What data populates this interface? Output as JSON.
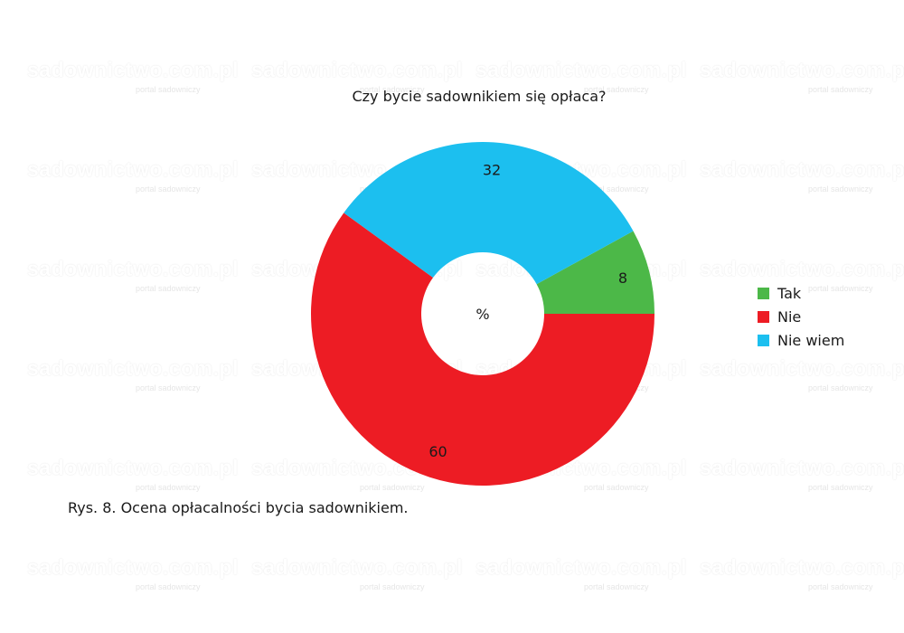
{
  "chart_data": {
    "type": "pie",
    "title": "Czy bycie sadownikiem się opłaca?",
    "center_label": "%",
    "categories": [
      "Tak",
      "Nie",
      "Nie wiem"
    ],
    "values": [
      8,
      60,
      32
    ],
    "colors": [
      "#4cb848",
      "#ed1c24",
      "#1cbfef"
    ],
    "legend_position": "right"
  },
  "legend": {
    "items": [
      {
        "label": "Tak",
        "color": "#4cb848"
      },
      {
        "label": "Nie",
        "color": "#ed1c24"
      },
      {
        "label": "Nie wiem",
        "color": "#1cbfef"
      }
    ]
  },
  "caption": "Rys. 8. Ocena opłacalności bycia sadownikiem.",
  "watermark": {
    "brand": "sadownictwo.com.pl",
    "sub": "portal sadowniczy"
  }
}
